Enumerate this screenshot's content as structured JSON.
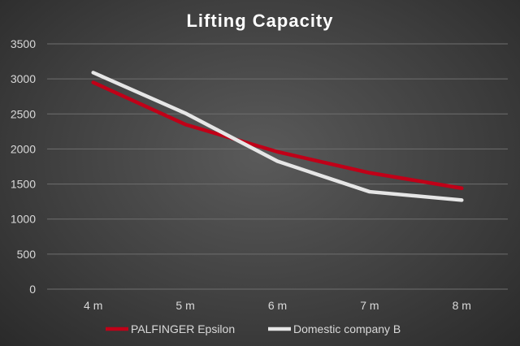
{
  "chart_data": {
    "type": "line",
    "title": "Lifting Capacity",
    "xlabel": "",
    "ylabel": "",
    "categories": [
      "4 m",
      "5 m",
      "6 m",
      "7 m",
      "8 m"
    ],
    "ylim": [
      0,
      3500
    ],
    "yticks": [
      "0",
      "500",
      "1000",
      "1500",
      "2000",
      "2500",
      "3000",
      "3500"
    ],
    "grid": true,
    "legend_position": "bottom",
    "series": [
      {
        "name": "PALFINGER Epsilon",
        "color": "#c00018",
        "values": [
          2950,
          2350,
          1960,
          1660,
          1440
        ]
      },
      {
        "name": "Domestic company B",
        "color": "#e6e6e6",
        "values": [
          3090,
          2510,
          1825,
          1390,
          1270
        ]
      }
    ]
  }
}
